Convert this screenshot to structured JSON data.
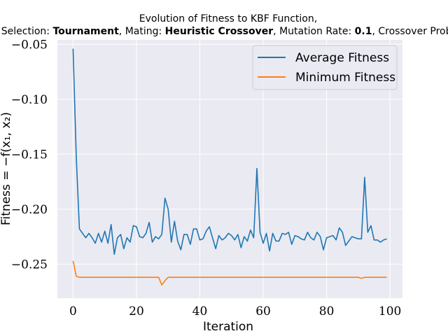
{
  "chart_data": {
    "type": "line",
    "title_line1": "Evolution of Fitness to KBF Function,",
    "title_line2": {
      "selection_label": "Selection: ",
      "selection_value": "Tournament",
      "mating_label": ", Mating: ",
      "mating_value": "Heuristic Crossover",
      "mutation_label": ", Mutation Rate: ",
      "mutation_value": "0.1",
      "crossover_label": ", Crossover Prob: "
    },
    "xlabel": "Iteration",
    "ylabel": "Fitness = −f(x₁, x₂)",
    "xlim": [
      -4.95,
      103.95
    ],
    "ylim": [
      -0.281,
      -0.046
    ],
    "xticks": [
      0,
      20,
      40,
      60,
      80,
      100
    ],
    "xtick_labels": [
      "0",
      "20",
      "40",
      "60",
      "80",
      "100"
    ],
    "yticks": [
      -0.05,
      -0.1,
      -0.15,
      -0.2,
      -0.25
    ],
    "ytick_labels": [
      "−0.05",
      "−0.10",
      "−0.15",
      "−0.20",
      "−0.25"
    ],
    "grid": true,
    "legend_position": "top-right",
    "x": [
      0,
      1,
      2,
      3,
      4,
      5,
      6,
      7,
      8,
      9,
      10,
      11,
      12,
      13,
      14,
      15,
      16,
      17,
      18,
      19,
      20,
      21,
      22,
      23,
      24,
      25,
      26,
      27,
      28,
      29,
      30,
      31,
      32,
      33,
      34,
      35,
      36,
      37,
      38,
      39,
      40,
      41,
      42,
      43,
      44,
      45,
      46,
      47,
      48,
      49,
      50,
      51,
      52,
      53,
      54,
      55,
      56,
      57,
      58,
      59,
      60,
      61,
      62,
      63,
      64,
      65,
      66,
      67,
      68,
      69,
      70,
      71,
      72,
      73,
      74,
      75,
      76,
      77,
      78,
      79,
      80,
      81,
      82,
      83,
      84,
      85,
      86,
      87,
      88,
      89,
      90,
      91,
      92,
      93,
      94,
      95,
      96,
      97,
      98,
      99
    ],
    "series": [
      {
        "name": "Average Fitness",
        "color": "#1f77b4",
        "values": [
          -0.054,
          -0.152,
          -0.218,
          -0.222,
          -0.226,
          -0.222,
          -0.226,
          -0.231,
          -0.222,
          -0.23,
          -0.22,
          -0.231,
          -0.214,
          -0.241,
          -0.226,
          -0.223,
          -0.236,
          -0.226,
          -0.23,
          -0.215,
          -0.216,
          -0.225,
          -0.226,
          -0.222,
          -0.212,
          -0.23,
          -0.225,
          -0.227,
          -0.223,
          -0.19,
          -0.2,
          -0.23,
          -0.211,
          -0.229,
          -0.237,
          -0.223,
          -0.223,
          -0.232,
          -0.218,
          -0.218,
          -0.228,
          -0.227,
          -0.22,
          -0.216,
          -0.226,
          -0.236,
          -0.224,
          -0.228,
          -0.226,
          -0.222,
          -0.224,
          -0.228,
          -0.223,
          -0.235,
          -0.225,
          -0.229,
          -0.219,
          -0.226,
          -0.163,
          -0.221,
          -0.231,
          -0.222,
          -0.238,
          -0.222,
          -0.229,
          -0.229,
          -0.222,
          -0.223,
          -0.221,
          -0.232,
          -0.224,
          -0.225,
          -0.227,
          -0.228,
          -0.221,
          -0.226,
          -0.228,
          -0.221,
          -0.225,
          -0.237,
          -0.226,
          -0.225,
          -0.224,
          -0.228,
          -0.217,
          -0.221,
          -0.233,
          -0.229,
          -0.225,
          -0.226,
          -0.227,
          -0.227,
          -0.171,
          -0.221,
          -0.215,
          -0.228,
          -0.228,
          -0.23,
          -0.228,
          -0.227
        ]
      },
      {
        "name": "Minimum Fitness",
        "color": "#ff7f0e",
        "values": [
          -0.247,
          -0.261,
          -0.262,
          -0.262,
          -0.262,
          -0.262,
          -0.262,
          -0.262,
          -0.262,
          -0.262,
          -0.262,
          -0.262,
          -0.262,
          -0.262,
          -0.262,
          -0.262,
          -0.262,
          -0.262,
          -0.262,
          -0.262,
          -0.262,
          -0.262,
          -0.262,
          -0.262,
          -0.262,
          -0.262,
          -0.262,
          -0.262,
          -0.269,
          -0.265,
          -0.262,
          -0.262,
          -0.262,
          -0.262,
          -0.262,
          -0.262,
          -0.262,
          -0.262,
          -0.262,
          -0.262,
          -0.262,
          -0.262,
          -0.262,
          -0.262,
          -0.262,
          -0.262,
          -0.262,
          -0.262,
          -0.262,
          -0.262,
          -0.262,
          -0.262,
          -0.262,
          -0.262,
          -0.262,
          -0.262,
          -0.262,
          -0.262,
          -0.262,
          -0.262,
          -0.262,
          -0.262,
          -0.262,
          -0.262,
          -0.262,
          -0.262,
          -0.262,
          -0.262,
          -0.262,
          -0.262,
          -0.262,
          -0.262,
          -0.262,
          -0.262,
          -0.262,
          -0.262,
          -0.262,
          -0.262,
          -0.262,
          -0.262,
          -0.262,
          -0.262,
          -0.262,
          -0.262,
          -0.262,
          -0.262,
          -0.262,
          -0.262,
          -0.262,
          -0.262,
          -0.262,
          -0.263,
          -0.262,
          -0.262,
          -0.262,
          -0.262,
          -0.262,
          -0.262,
          -0.262,
          -0.262
        ]
      }
    ]
  },
  "colors": {
    "plot_background": "#eaeaf2",
    "grid": "#ffffff"
  }
}
